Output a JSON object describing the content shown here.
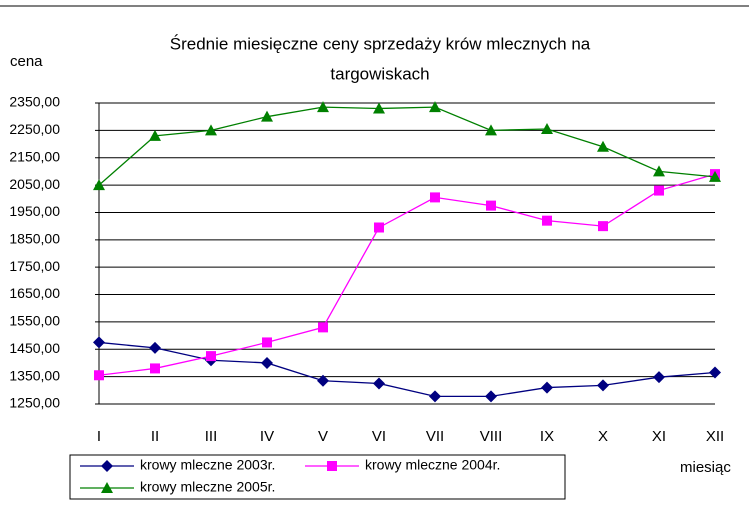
{
  "chart_data": {
    "type": "line",
    "title": "Średnie miesięczne ceny sprzedaży krów mlecznych na",
    "title_line2": "targowiskach",
    "y_label": "cena",
    "x_label": "miesiąc",
    "categories": [
      "I",
      "II",
      "III",
      "IV",
      "V",
      "VI",
      "VII",
      "VIII",
      "IX",
      "X",
      "XI",
      "XII"
    ],
    "series": [
      {
        "name": "krowy mleczne 2003r.",
        "color": "#000080",
        "marker": "diamond",
        "values": [
          1475,
          1455,
          1410,
          1400,
          1335,
          1325,
          1278,
          1278,
          1310,
          1318,
          1348,
          1365
        ]
      },
      {
        "name": "krowy mleczne 2004r.",
        "color": "#ff00ff",
        "marker": "square",
        "values": [
          1355,
          1380,
          1425,
          1475,
          1530,
          1895,
          2005,
          1975,
          1920,
          1900,
          2030,
          2090
        ]
      },
      {
        "name": "krowy mleczne 2005r.",
        "color": "#008000",
        "marker": "triangle",
        "values": [
          2050,
          2230,
          2250,
          2300,
          2335,
          2330,
          2335,
          2250,
          2255,
          2190,
          2100,
          2080
        ]
      }
    ],
    "ylim": [
      1250,
      2350
    ],
    "yticks": [
      {
        "value": 1250,
        "label": "1250,00"
      },
      {
        "value": 1350,
        "label": "1350,00"
      },
      {
        "value": 1450,
        "label": "1450,00"
      },
      {
        "value": 1550,
        "label": "1550,00"
      },
      {
        "value": 1650,
        "label": "1650,00"
      },
      {
        "value": 1750,
        "label": "1750,00"
      },
      {
        "value": 1850,
        "label": "1850,00"
      },
      {
        "value": 1950,
        "label": "1950,00"
      },
      {
        "value": 2050,
        "label": "2050,00"
      },
      {
        "value": 2150,
        "label": "2150,00"
      },
      {
        "value": 2250,
        "label": "2250,00"
      },
      {
        "value": 2350,
        "label": "2350,00"
      }
    ],
    "grid": true
  }
}
